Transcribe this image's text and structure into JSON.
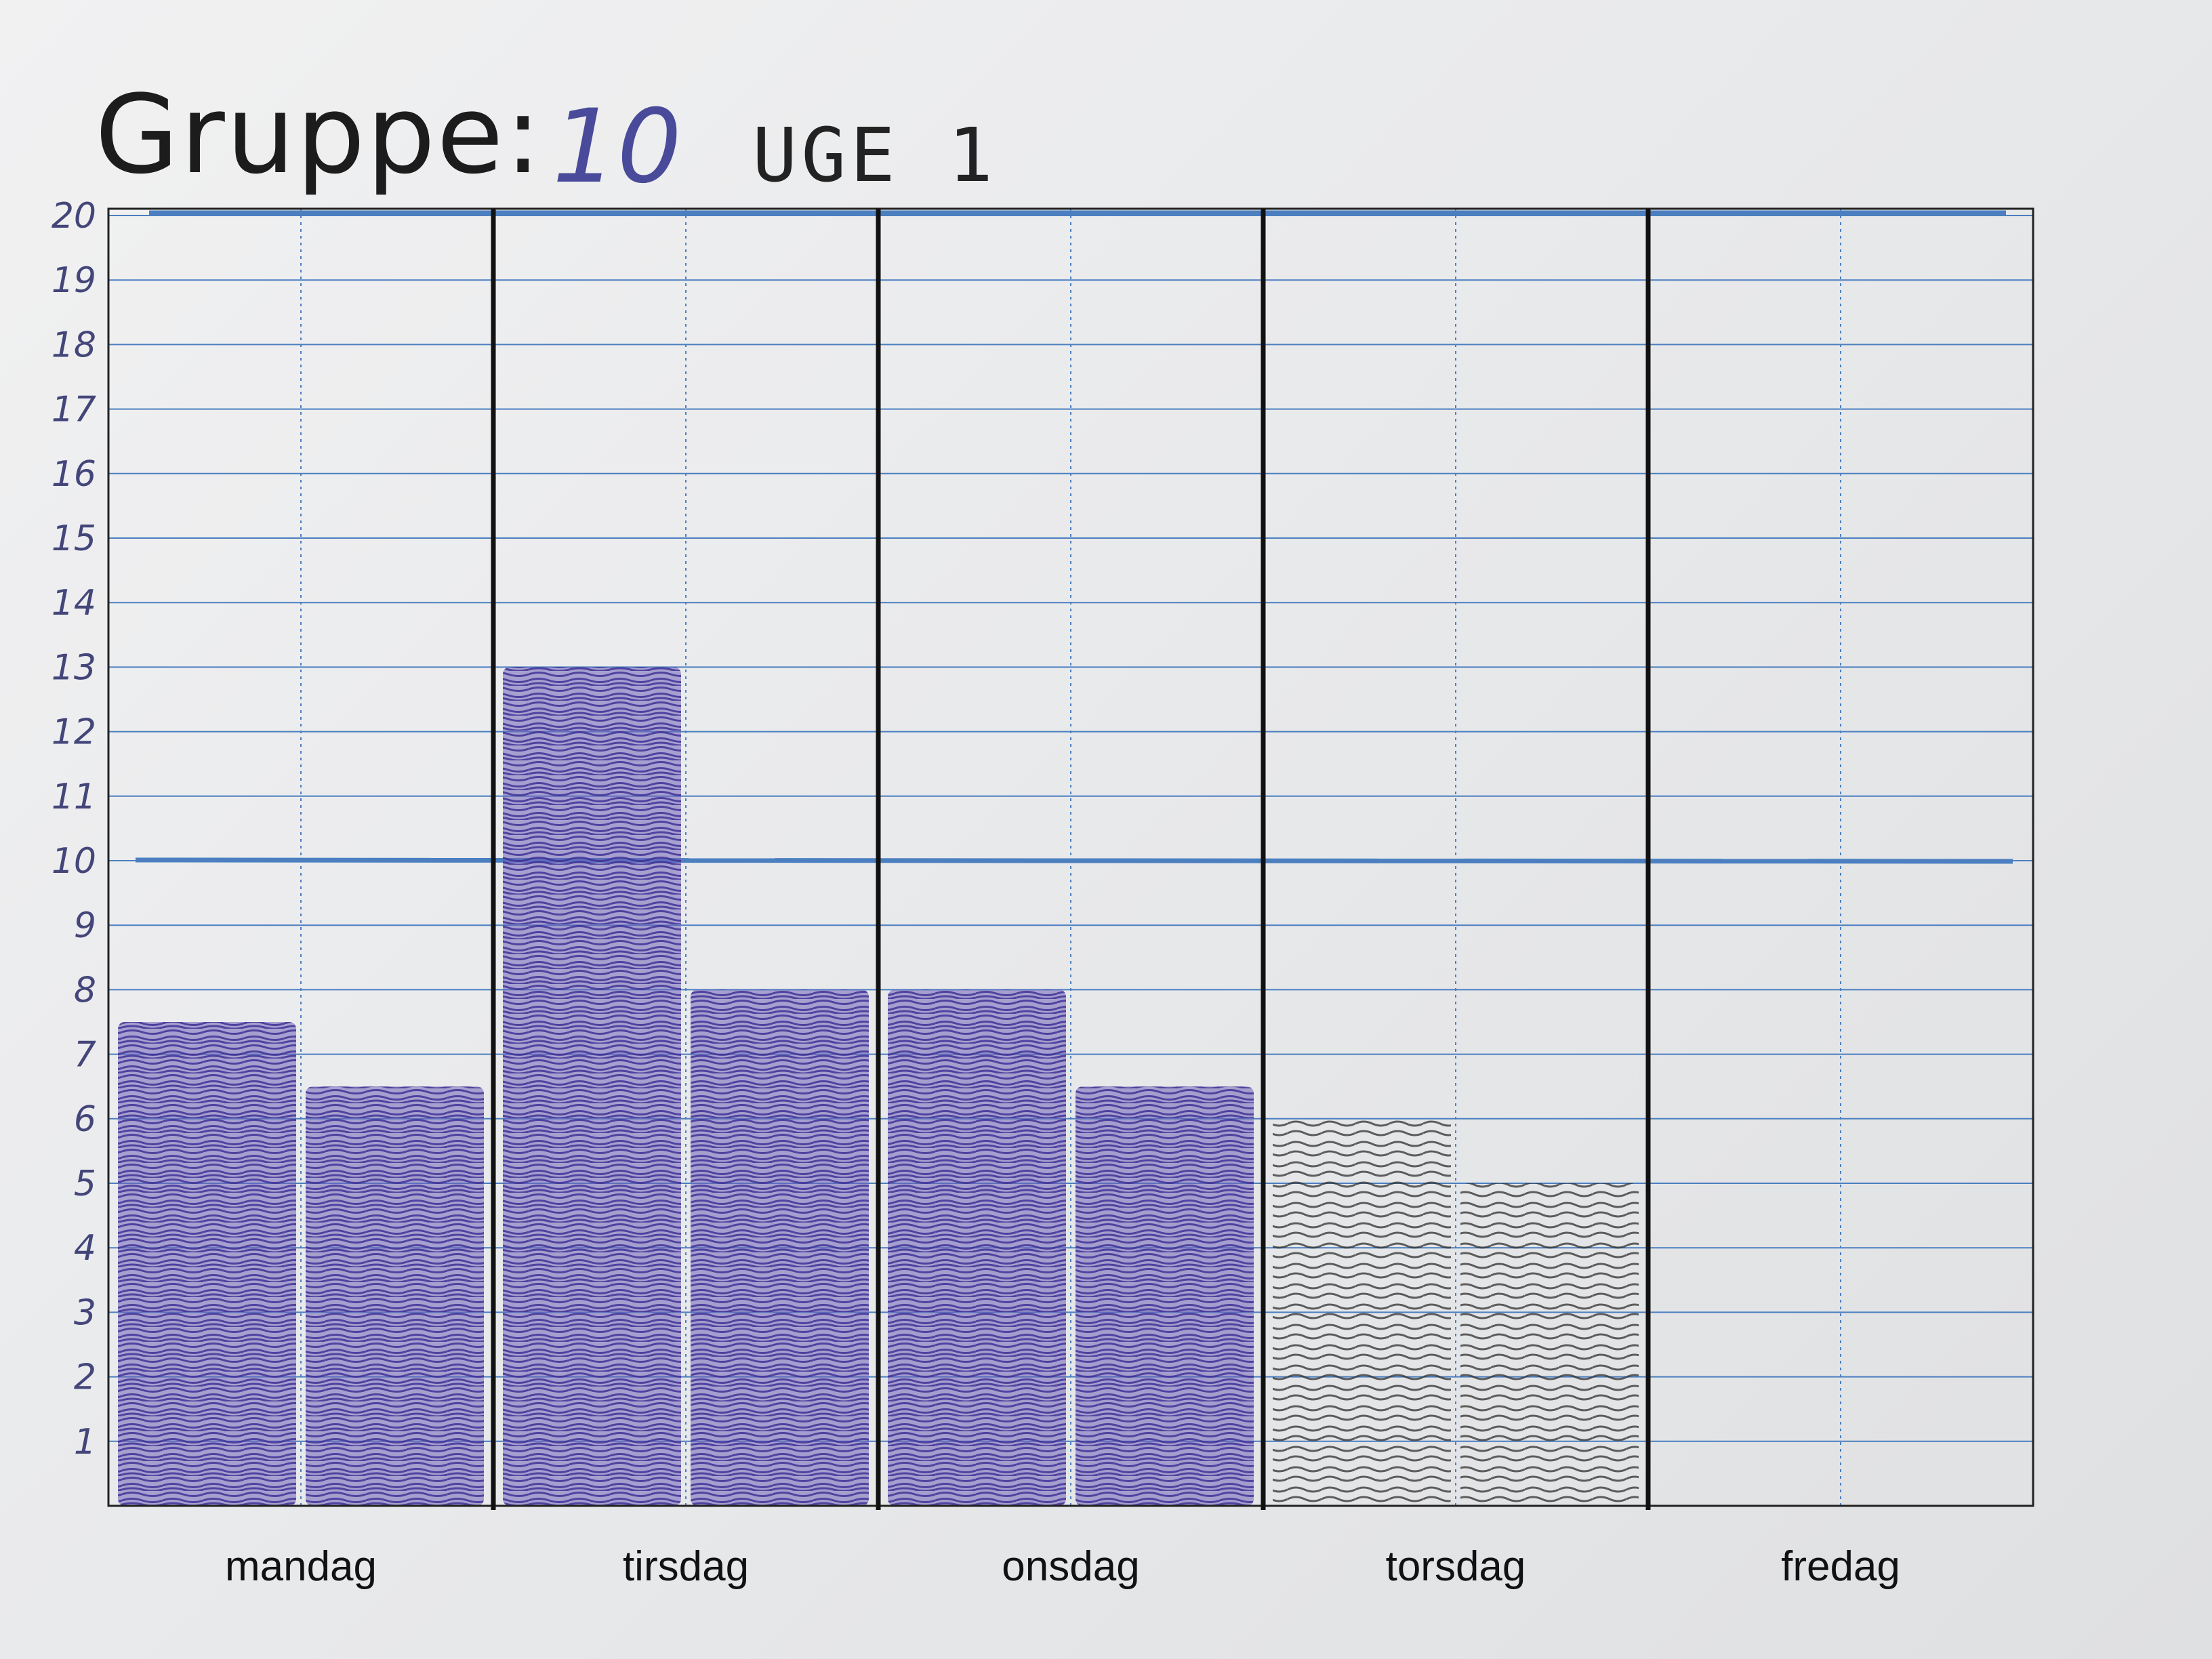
{
  "title": {
    "label": "Gruppe:",
    "number": "10",
    "week": "UGE 1"
  },
  "chart_data": {
    "type": "bar",
    "categories": [
      "mandag",
      "tirsdag",
      "onsdag",
      "torsdag",
      "fredag"
    ],
    "series": [
      {
        "values": [
          7.5,
          13,
          8,
          6,
          0
        ]
      },
      {
        "values": [
          6.5,
          8,
          6.5,
          5,
          0
        ]
      }
    ],
    "ylim": [
      0,
      20
    ],
    "yticks": [
      "1",
      "2",
      "3",
      "4",
      "5",
      "6",
      "7",
      "8",
      "9",
      "10",
      "11",
      "12",
      "13",
      "14",
      "15",
      "16",
      "17",
      "18",
      "19",
      "20"
    ],
    "colors": {
      "ink_blue": "#4b3aa0",
      "ink_pencil": "#3a3a3a",
      "grid_blue": "#4b7fc0"
    },
    "grid": true
  }
}
